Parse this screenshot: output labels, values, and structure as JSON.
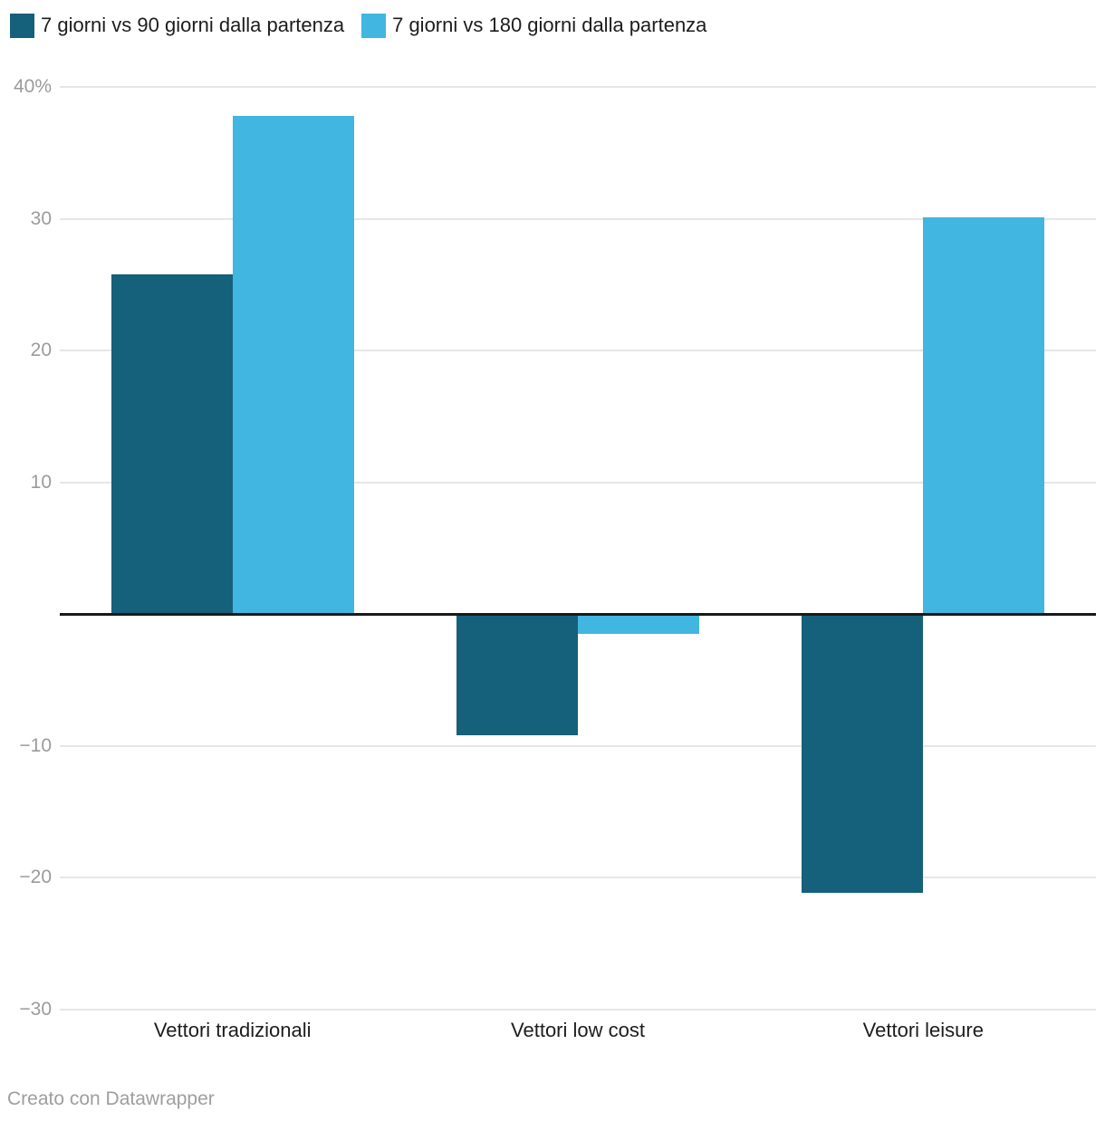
{
  "legend": {
    "items": [
      {
        "label": "7 giorni vs 90 giorni dalla partenza",
        "color": "#15607a"
      },
      {
        "label": "7 giorni vs 180 giorni dalla partenza",
        "color": "#41b6e1"
      }
    ]
  },
  "footer": {
    "credit": "Creato con Datawrapper"
  },
  "chart_data": {
    "type": "bar",
    "title": "",
    "categories": [
      "Vettori tradizionali",
      "Vettori low cost",
      "Vettori leisure"
    ],
    "series": [
      {
        "name": "7 giorni vs 90 giorni dalla partenza",
        "color": "#15607a",
        "values": [
          25.8,
          -9.2,
          -21.2
        ]
      },
      {
        "name": "7 giorni vs 180 giorni dalla partenza",
        "color": "#41b6e1",
        "values": [
          37.8,
          -1.5,
          30.1
        ]
      }
    ],
    "xlabel": "",
    "ylabel": "",
    "ylim": [
      -30,
      40
    ],
    "ytick_interval": 10,
    "yticks": [
      {
        "value": 40,
        "label": "40%"
      },
      {
        "value": 30,
        "label": "30"
      },
      {
        "value": 20,
        "label": "20"
      },
      {
        "value": 10,
        "label": "10"
      },
      {
        "value": -10,
        "label": "−10"
      },
      {
        "value": -20,
        "label": "−20"
      },
      {
        "value": -30,
        "label": "−30"
      }
    ],
    "grid": true,
    "zero_line": true,
    "legend_position": "top",
    "colors": {
      "background": "#ffffff",
      "grid": "#e6e6e6",
      "zero_line": "#19191b",
      "tick_label": "#9b9b9b",
      "category_label": "#1d1d1d",
      "legend_text": "#1d1d1d",
      "credit_text": "#9e9e9e"
    }
  }
}
